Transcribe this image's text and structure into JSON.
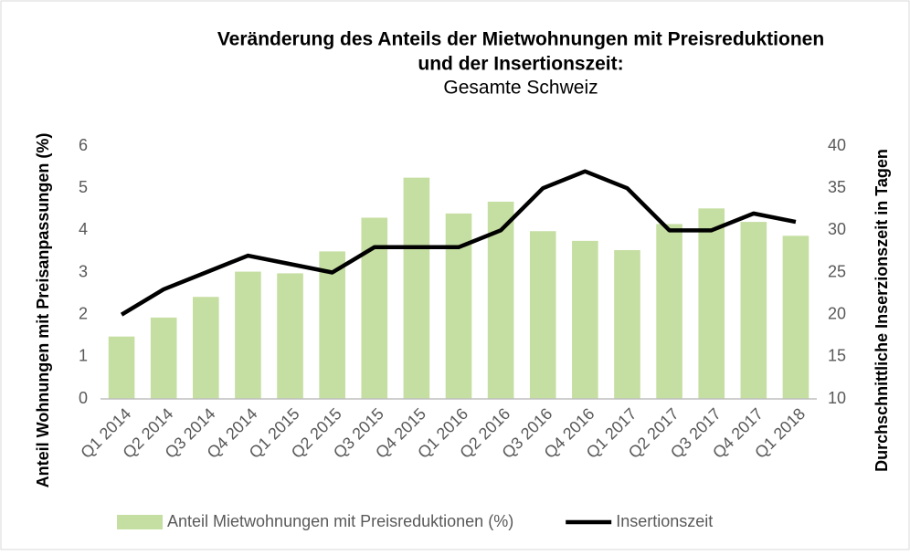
{
  "chart_data": {
    "type": "bar_line",
    "title": [
      "Veränderung des Anteils der Mietwohnungen mit Preisreduktionen",
      "und der Insertionszeit:"
    ],
    "subtitle": "Gesamte Schweiz",
    "y_label": "Anteil Wohnungen mit Preisanpassungen (%)",
    "y2_label": "Durchschnittliche Inserzionszeit in Tagen",
    "categories": [
      "Q1 2014",
      "Q2 2014",
      "Q3 2014",
      "Q4 2014",
      "Q1 2015",
      "Q2 2015",
      "Q3 2015",
      "Q4 2015",
      "Q1 2016",
      "Q2 2016",
      "Q3 2016",
      "Q4 2016",
      "Q1 2017",
      "Q2 2017",
      "Q3 2017",
      "Q4 2017",
      "Q1 2018"
    ],
    "series": [
      {
        "name": "Anteil Mietwohnungen mit Preisreduktionen (%)",
        "type": "bar",
        "color": "#c5dea1",
        "values": [
          1.48,
          1.93,
          2.42,
          3.02,
          2.98,
          3.5,
          4.3,
          5.25,
          4.4,
          4.68,
          3.98,
          3.75,
          3.53,
          4.15,
          4.52,
          4.2,
          3.87
        ]
      },
      {
        "name": "Insertionszeit",
        "type": "line",
        "axis": "y2",
        "color": "#000000",
        "values": [
          20,
          23,
          25,
          27,
          26,
          25,
          28,
          28,
          28,
          30,
          35,
          37,
          35,
          30,
          30,
          32,
          31
        ]
      }
    ],
    "ylim": [
      0,
      6
    ],
    "yticks": [
      0,
      1,
      2,
      3,
      4,
      5,
      6
    ],
    "y2lim": [
      10,
      40
    ],
    "y2ticks": [
      10,
      15,
      20,
      25,
      30,
      35,
      40
    ],
    "grid": false,
    "legend": "bottom"
  }
}
